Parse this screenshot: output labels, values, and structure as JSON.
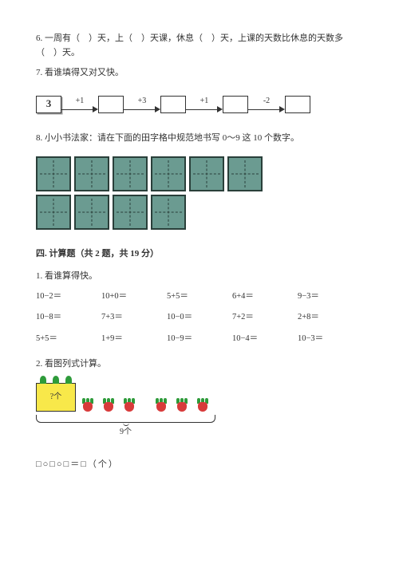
{
  "q6": "6. 一周有（　）天，上（　）天课，休息（　）天，上课的天数比休息的天数多（　）天。",
  "q7": "7. 看谁填得又对又快。",
  "flow": {
    "start": "3",
    "ops": [
      "+1",
      "+3",
      "+1",
      "-2"
    ]
  },
  "q8": "8. 小小书法家：请在下面的田字格中规范地书写 0～9 这 10 个数字。",
  "grid": {
    "row1": 6,
    "row2": 4
  },
  "sec4": {
    "title": "四. 计算题（共 2 题，共 19 分）"
  },
  "calc": {
    "title": "1. 看谁算得快。",
    "items": [
      "10−2＝",
      "10+0＝",
      "5+5＝",
      "6+4＝",
      "9−3＝",
      "10−8＝",
      "7+3＝",
      "10−0＝",
      "7+2＝",
      "2+8＝",
      "5+5＝",
      "1+9＝",
      "10−9＝",
      "10−4＝",
      "10−3＝"
    ]
  },
  "pic": {
    "title": "2. 看图列式计算。",
    "box_label": "?个",
    "radish_count": 6,
    "total_label": "9个"
  },
  "eq": "□○□○□＝□（个）",
  "colors": {
    "tian_fill": "#6b9b91",
    "tian_border": "#2a3f3a",
    "yellow": "#f8e84a",
    "leaf": "#2e9b3a",
    "radish": "#d83a3a"
  }
}
